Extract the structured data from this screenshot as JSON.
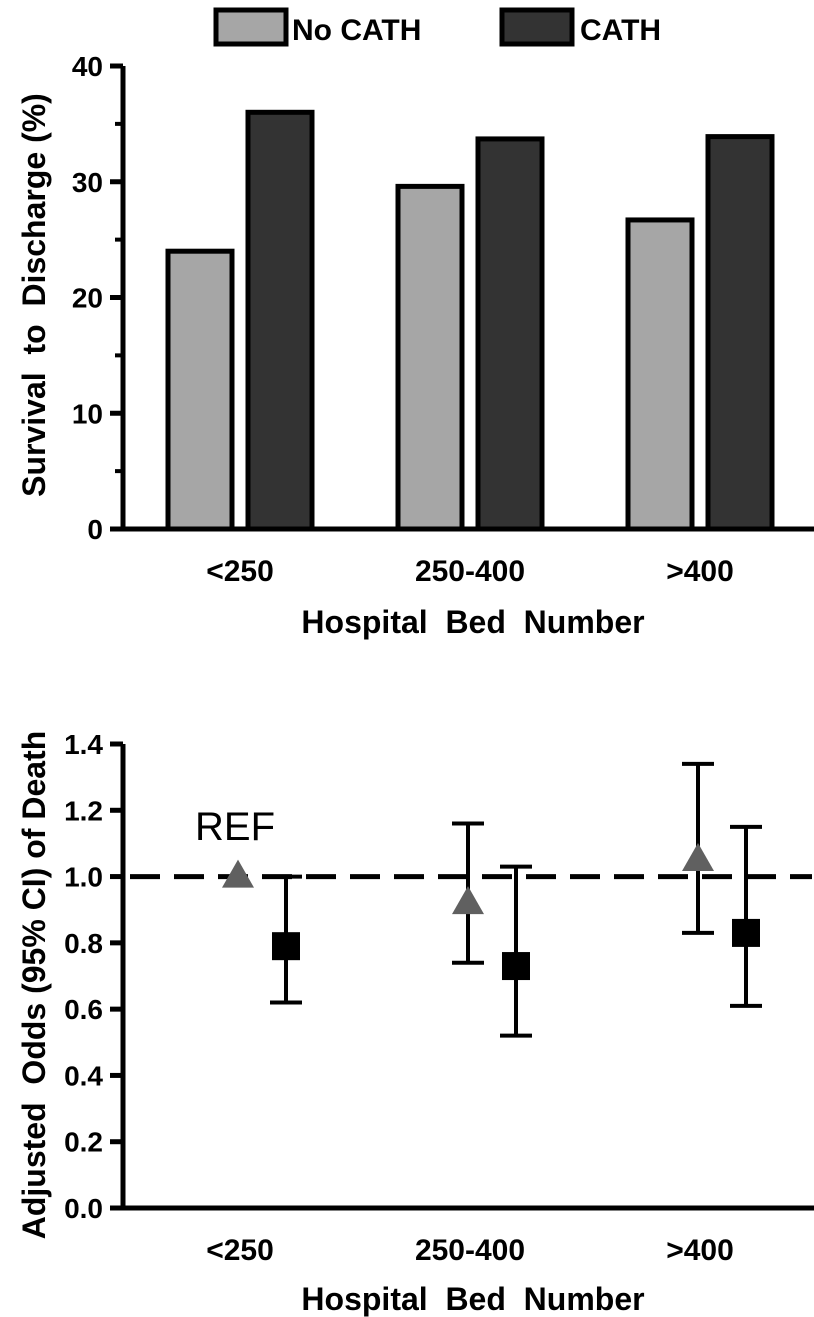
{
  "chart_data": [
    {
      "type": "bar",
      "legend": {
        "placement": "top",
        "entries": [
          {
            "label": "No CATH",
            "color": "#a6a6a6"
          },
          {
            "label": "CATH",
            "color": "#333333"
          }
        ]
      },
      "categories": [
        "<250",
        "250-400",
        ">400"
      ],
      "series": [
        {
          "name": "No CATH",
          "color": "#a6a6a6",
          "values": [
            24,
            29.6,
            26.7
          ]
        },
        {
          "name": "CATH",
          "color": "#333333",
          "values": [
            36,
            33.7,
            33.9
          ]
        }
      ],
      "xlabel": "Hospital  Bed  Number",
      "ylabel": "Survival  to  Discharge (%)",
      "ylim": [
        0,
        40
      ],
      "yticks": [
        0,
        10,
        20,
        30,
        40
      ],
      "yticks_display": [
        "0",
        "10",
        "20",
        "30",
        "40"
      ],
      "grid": false
    },
    {
      "type": "scatter",
      "categories": [
        "<250",
        "250-400",
        ">400"
      ],
      "series": [
        {
          "name": "No CATH",
          "marker": "triangle",
          "color": "#606060",
          "values": [
            1.0,
            0.92,
            1.05
          ],
          "ci_low": [
            null,
            0.74,
            0.83
          ],
          "ci_high": [
            null,
            1.16,
            1.34
          ]
        },
        {
          "name": "CATH",
          "marker": "square",
          "color": "#000000",
          "values": [
            0.79,
            0.73,
            0.83
          ],
          "ci_low": [
            0.62,
            0.52,
            0.61
          ],
          "ci_high": [
            1.0,
            1.03,
            1.15
          ]
        }
      ],
      "reference_line": {
        "value": 1.0,
        "style": "dashed"
      },
      "annotation": "REF",
      "xlabel": "Hospital  Bed  Number",
      "ylabel": "Adjusted  Odds (95% CI) of Death",
      "ylim": [
        0,
        1.4
      ],
      "yticks": [
        0,
        0.2,
        0.4,
        0.6,
        0.8,
        1.0,
        1.2,
        1.4
      ],
      "yticks_display": [
        "0.0",
        "0.2",
        "0.4",
        "0.6",
        "0.8",
        "1.0",
        "1.2",
        "1.4"
      ],
      "grid": false
    }
  ]
}
